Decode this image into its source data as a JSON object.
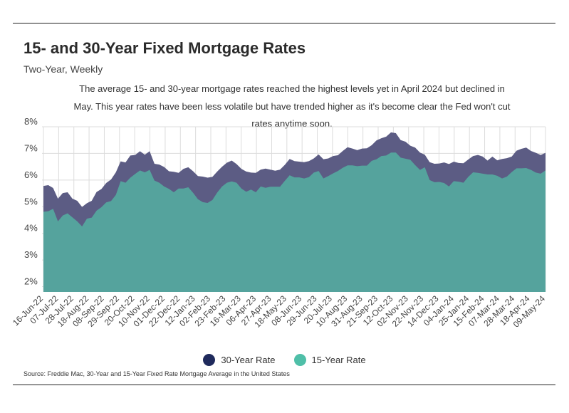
{
  "title": "15- and 30-Year Fixed Mortgage Rates",
  "subtitle": "Two-Year, Weekly",
  "description": "The average 15- and 30-year mortgage rates reached the highest levels yet in April 2024 but declined in May. This year rates have been less volatile but have trended higher as it's become clear the Fed won't cut rates anytime soon.",
  "source": "Source:  Freddie Mac, 30-Year  and 15-Year Fixed Rate Mortgage Average in the United States",
  "colors": {
    "thirty": "#5c5c84",
    "fifteen": "#55a39d",
    "legend_thirty": "#1f2a5c",
    "legend_fifteen": "#4fbfa8",
    "grid": "#dcdcdc"
  },
  "chart_data": {
    "type": "area",
    "title": "15- and 30-Year Fixed Mortgage Rates",
    "subtitle": "Two-Year, Weekly",
    "xlabel": "",
    "ylabel": "",
    "ylim": [
      1.8,
      8
    ],
    "yticks": [
      2,
      3,
      4,
      5,
      6,
      7,
      8
    ],
    "ytick_labels": [
      "2%",
      "3%",
      "4%",
      "5%",
      "6%",
      "7%",
      "8%"
    ],
    "legend_position": "bottom-center",
    "x_tick_labels": [
      "16-Jun-22",
      "07-Jul-22",
      "28-Jul-22",
      "18-Aug-22",
      "08-Sep-22",
      "29-Sep-22",
      "20-Oct-22",
      "10-Nov-22",
      "01-Dec-22",
      "22-Dec-22",
      "12-Jan-23",
      "02-Feb-23",
      "23-Feb-23",
      "16-Mar-23",
      "06-Apr-23",
      "27-Apr-23",
      "18-May-23",
      "08-Jun-23",
      "29-Jun-23",
      "20-Jul-23",
      "10-Aug-23",
      "31-Aug-23",
      "21-Sep-23",
      "12-Oct-23",
      "02-Nov-23",
      "22-Nov-23",
      "14-Dec-23",
      "04-Jan-24",
      "25-Jan-24",
      "15-Feb-24",
      "07-Mar-24",
      "28-Mar-24",
      "18-Apr-24",
      "09-May-24"
    ],
    "series": [
      {
        "name": "30-Year Rate",
        "values": [
          5.78,
          5.81,
          5.7,
          5.3,
          5.51,
          5.54,
          5.3,
          5.22,
          4.99,
          5.13,
          5.22,
          5.55,
          5.66,
          5.89,
          6.02,
          6.29,
          6.7,
          6.66,
          6.92,
          6.94,
          7.08,
          6.95,
          7.08,
          6.61,
          6.58,
          6.49,
          6.33,
          6.31,
          6.27,
          6.42,
          6.48,
          6.33,
          6.15,
          6.13,
          6.09,
          6.12,
          6.32,
          6.5,
          6.65,
          6.73,
          6.6,
          6.42,
          6.32,
          6.28,
          6.27,
          6.39,
          6.43,
          6.39,
          6.35,
          6.39,
          6.57,
          6.79,
          6.71,
          6.69,
          6.67,
          6.71,
          6.81,
          6.96,
          6.78,
          6.81,
          6.9,
          6.93,
          7.09,
          7.23,
          7.18,
          7.12,
          7.18,
          7.19,
          7.31,
          7.49,
          7.57,
          7.63,
          7.79,
          7.76,
          7.5,
          7.44,
          7.29,
          7.22,
          7.03,
          6.95,
          6.67,
          6.61,
          6.62,
          6.66,
          6.6,
          6.69,
          6.64,
          6.63,
          6.77,
          6.9,
          6.94,
          6.88,
          6.73,
          6.88,
          6.74,
          6.79,
          6.82,
          6.88,
          7.1,
          7.17,
          7.22,
          7.09,
          7.02,
          6.94,
          7.02
        ]
      },
      {
        "name": "15-Year Rate",
        "values": [
          4.81,
          4.83,
          4.92,
          4.45,
          4.67,
          4.75,
          4.6,
          4.45,
          4.26,
          4.55,
          4.59,
          4.85,
          4.98,
          5.16,
          5.21,
          5.44,
          5.96,
          5.9,
          6.09,
          6.23,
          6.36,
          6.29,
          6.38,
          5.98,
          5.9,
          5.76,
          5.67,
          5.54,
          5.68,
          5.68,
          5.73,
          5.52,
          5.28,
          5.17,
          5.14,
          5.25,
          5.53,
          5.76,
          5.9,
          5.95,
          5.9,
          5.68,
          5.56,
          5.64,
          5.54,
          5.76,
          5.71,
          5.75,
          5.75,
          5.75,
          5.97,
          6.18,
          6.1,
          6.1,
          6.06,
          6.11,
          6.28,
          6.34,
          6.06,
          6.15,
          6.25,
          6.34,
          6.46,
          6.55,
          6.55,
          6.52,
          6.54,
          6.54,
          6.72,
          6.78,
          6.9,
          6.92,
          7.03,
          7.03,
          6.84,
          6.8,
          6.76,
          6.56,
          6.38,
          6.48,
          6.0,
          5.92,
          5.93,
          5.89,
          5.76,
          5.96,
          5.94,
          5.9,
          6.12,
          6.29,
          6.27,
          6.24,
          6.21,
          6.21,
          6.16,
          6.06,
          6.13,
          6.3,
          6.44,
          6.44,
          6.45,
          6.38,
          6.28,
          6.24,
          6.36
        ]
      }
    ]
  }
}
